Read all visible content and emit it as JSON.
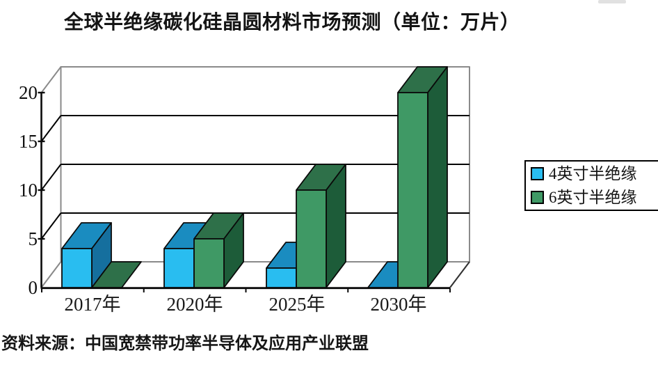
{
  "title": "全球半绝缘碳化硅晶圆材料市场预测（单位：万片）",
  "source_line": "资料来源：中国宽禁带功率半导体及应用产业联盟",
  "legend": {
    "position": "right",
    "items": [
      {
        "label": "4英寸半绝缘",
        "swatch_color": "#29bdf0"
      },
      {
        "label": "6英寸半绝缘",
        "swatch_color": "#3f9965"
      }
    ]
  },
  "chart_data": {
    "type": "bar",
    "style": "3d-clustered-column",
    "title": "全球半绝缘碳化硅晶圆材料市场预测（单位：万片）",
    "unit_label": "万片",
    "categories": [
      "2017年",
      "2020年",
      "2025年",
      "2030年"
    ],
    "series": [
      {
        "name": "4英寸半绝缘",
        "values": [
          4,
          4,
          2,
          0
        ],
        "front_color": "#29bdf0",
        "top_color": "#1a8cc0",
        "side_color": "#156f9e"
      },
      {
        "name": "6英寸半绝缘",
        "values": [
          0,
          5,
          10,
          20
        ],
        "front_color": "#3f9965",
        "top_color": "#2e7049",
        "side_color": "#1d5c39"
      }
    ],
    "ylim": [
      0,
      20
    ],
    "yticks": [
      0,
      5,
      10,
      15,
      20
    ],
    "y_tick_labels": [
      "0",
      "5",
      "10",
      "15",
      "20"
    ],
    "grid": "horizontal-gridlines-on-back-wall",
    "legend_position": "right",
    "wall_color": "#ffffff",
    "wall_border_color": "#8a8a8a",
    "gridline_color": "#000000"
  }
}
